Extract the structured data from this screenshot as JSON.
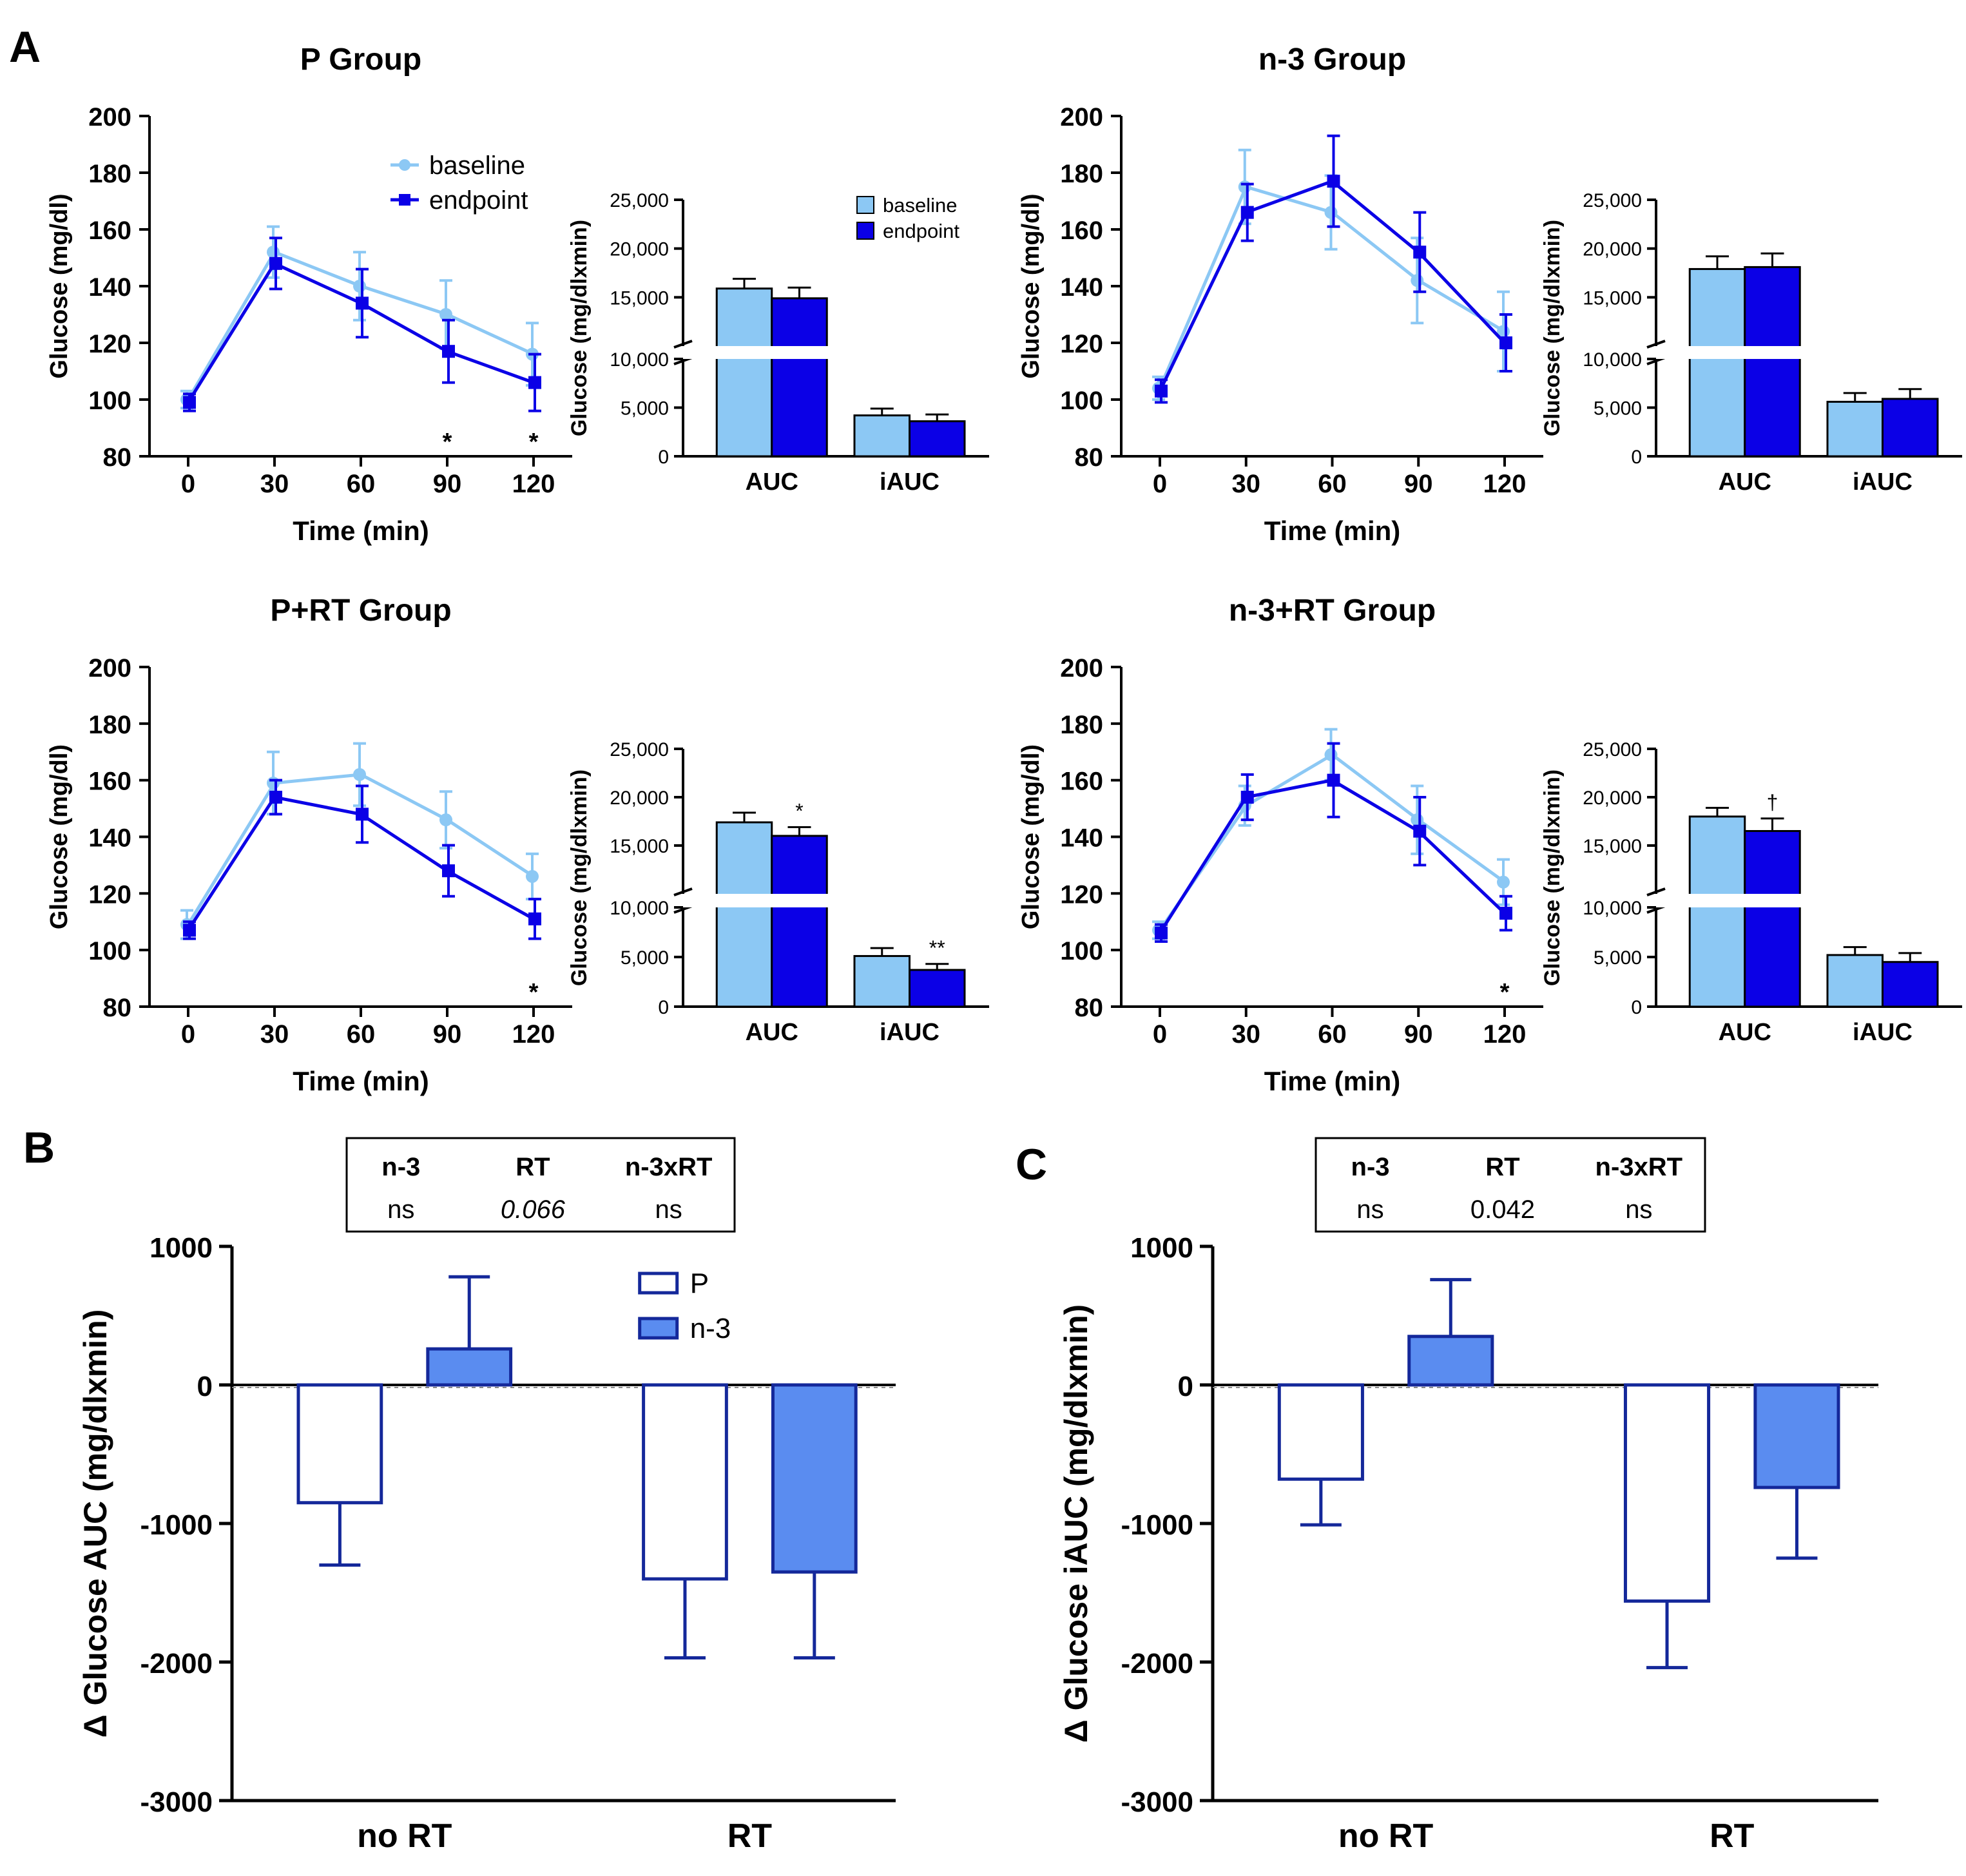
{
  "panel_letters": {
    "a": "A",
    "b": "B",
    "c": "C"
  },
  "colors": {
    "baseline": "#8cc8f4",
    "endpoint": "#0b00e6",
    "p_fill": "#ffffff",
    "n3_fill": "#5a8cf0",
    "bar_edge": "#14289a",
    "axis": "#000000"
  },
  "chart_data": [
    {
      "id": "p_line",
      "type": "line",
      "title": "P Group",
      "xlabel": "Time (min)",
      "ylabel": "Glucose (mg/dl)",
      "x": [
        0,
        30,
        60,
        90,
        120
      ],
      "xlim": [
        0,
        120
      ],
      "ylim": [
        80,
        200
      ],
      "yticks": [
        80,
        100,
        120,
        140,
        160,
        180,
        200
      ],
      "legend": {
        "position": "top-right",
        "entries": [
          "baseline",
          "endpoint"
        ]
      },
      "series": [
        {
          "name": "baseline",
          "values": [
            100,
            152,
            140,
            130,
            116
          ],
          "errors": [
            3,
            9,
            12,
            12,
            11
          ]
        },
        {
          "name": "endpoint",
          "values": [
            99,
            148,
            134,
            117,
            106
          ],
          "errors": [
            3,
            9,
            12,
            11,
            10
          ]
        }
      ],
      "annotations": [
        {
          "x": 90,
          "text": "*"
        },
        {
          "x": 120,
          "text": "*"
        }
      ]
    },
    {
      "id": "p_bar",
      "type": "bar",
      "ylabel": "Glucose (mg/dlxmin)",
      "categories": [
        "AUC",
        "iAUC"
      ],
      "ylim_lower": [
        0,
        10000
      ],
      "ylim_upper": [
        10000,
        25000
      ],
      "yticks": [
        "0",
        "5,000",
        "10,000",
        "15,000",
        "20,000",
        "25,000"
      ],
      "legend": {
        "position": "top-right",
        "entries": [
          "baseline",
          "endpoint"
        ]
      },
      "series": [
        {
          "name": "baseline",
          "values": [
            15900,
            4200
          ],
          "errors": [
            1000,
            700
          ]
        },
        {
          "name": "endpoint",
          "values": [
            14900,
            3600
          ],
          "errors": [
            1100,
            700
          ]
        }
      ],
      "annotations": []
    },
    {
      "id": "n3_line",
      "type": "line",
      "title": "n-3 Group",
      "xlabel": "Time (min)",
      "ylabel": "Glucose (mg/dl)",
      "x": [
        0,
        30,
        60,
        90,
        120
      ],
      "xlim": [
        0,
        120
      ],
      "ylim": [
        80,
        200
      ],
      "yticks": [
        80,
        100,
        120,
        140,
        160,
        180,
        200
      ],
      "series": [
        {
          "name": "baseline",
          "values": [
            104,
            175,
            166,
            142,
            124
          ],
          "errors": [
            4,
            13,
            13,
            15,
            14
          ]
        },
        {
          "name": "endpoint",
          "values": [
            103,
            166,
            177,
            152,
            120
          ],
          "errors": [
            4,
            10,
            16,
            14,
            10
          ]
        }
      ],
      "annotations": []
    },
    {
      "id": "n3_bar",
      "type": "bar",
      "ylabel": "Glucose (mg/dlxmin)",
      "categories": [
        "AUC",
        "iAUC"
      ],
      "ylim_lower": [
        0,
        10000
      ],
      "ylim_upper": [
        10000,
        25000
      ],
      "yticks": [
        "0",
        "5,000",
        "10,000",
        "15,000",
        "20,000",
        "25,000"
      ],
      "series": [
        {
          "name": "baseline",
          "values": [
            17900,
            5600
          ],
          "errors": [
            1300,
            900
          ]
        },
        {
          "name": "endpoint",
          "values": [
            18100,
            5900
          ],
          "errors": [
            1400,
            1000
          ]
        }
      ],
      "annotations": []
    },
    {
      "id": "prt_line",
      "type": "line",
      "title": "P+RT Group",
      "xlabel": "Time (min)",
      "ylabel": "Glucose (mg/dl)",
      "x": [
        0,
        30,
        60,
        90,
        120
      ],
      "xlim": [
        0,
        120
      ],
      "ylim": [
        80,
        200
      ],
      "yticks": [
        80,
        100,
        120,
        140,
        160,
        180,
        200
      ],
      "series": [
        {
          "name": "baseline",
          "values": [
            109,
            159,
            162,
            146,
            126
          ],
          "errors": [
            5,
            11,
            11,
            10,
            8
          ]
        },
        {
          "name": "endpoint",
          "values": [
            107,
            154,
            148,
            128,
            111
          ],
          "errors": [
            3,
            6,
            10,
            9,
            7
          ]
        }
      ],
      "annotations": [
        {
          "x": 120,
          "text": "*"
        }
      ]
    },
    {
      "id": "prt_bar",
      "type": "bar",
      "ylabel": "Glucose (mg/dlxmin)",
      "categories": [
        "AUC",
        "iAUC"
      ],
      "ylim_lower": [
        0,
        10000
      ],
      "ylim_upper": [
        10000,
        25000
      ],
      "yticks": [
        "0",
        "5,000",
        "10,000",
        "15,000",
        "20,000",
        "25,000"
      ],
      "series": [
        {
          "name": "baseline",
          "values": [
            17400,
            5100
          ],
          "errors": [
            1000,
            800
          ]
        },
        {
          "name": "endpoint",
          "values": [
            16000,
            3700
          ],
          "errors": [
            900,
            600
          ]
        }
      ],
      "annotations": [
        {
          "category": 0,
          "series": 1,
          "text": "*"
        },
        {
          "category": 1,
          "series": 1,
          "text": "**"
        }
      ]
    },
    {
      "id": "n3rt_line",
      "type": "line",
      "title": "n-3+RT Group",
      "xlabel": "Time (min)",
      "ylabel": "Glucose (mg/dl)",
      "x": [
        0,
        30,
        60,
        90,
        120
      ],
      "xlim": [
        0,
        120
      ],
      "ylim": [
        80,
        200
      ],
      "yticks": [
        80,
        100,
        120,
        140,
        160,
        180,
        200
      ],
      "series": [
        {
          "name": "baseline",
          "values": [
            107,
            151,
            169,
            146,
            124
          ],
          "errors": [
            3,
            7,
            9,
            12,
            8
          ]
        },
        {
          "name": "endpoint",
          "values": [
            106,
            154,
            160,
            142,
            113
          ],
          "errors": [
            3,
            8,
            13,
            12,
            6
          ]
        }
      ],
      "annotations": [
        {
          "x": 120,
          "text": "*"
        }
      ]
    },
    {
      "id": "n3rt_bar",
      "type": "bar",
      "ylabel": "Glucose (mg/dlxmin)",
      "categories": [
        "AUC",
        "iAUC"
      ],
      "ylim_lower": [
        0,
        10000
      ],
      "ylim_upper": [
        10000,
        25000
      ],
      "yticks": [
        "0",
        "5,000",
        "10,000",
        "15,000",
        "20,000",
        "25,000"
      ],
      "series": [
        {
          "name": "baseline",
          "values": [
            18000,
            5200
          ],
          "errors": [
            900,
            800
          ]
        },
        {
          "name": "endpoint",
          "values": [
            16500,
            4500
          ],
          "errors": [
            1300,
            900
          ]
        }
      ],
      "annotations": [
        {
          "category": 0,
          "series": 1,
          "text": "†"
        }
      ]
    },
    {
      "id": "delta_auc",
      "type": "bar",
      "ylabel": "Δ Glucose AUC (mg/dlxmin)",
      "categories": [
        "no RT",
        "RT"
      ],
      "ylim": [
        -3000,
        1000
      ],
      "yticks": [
        -3000,
        -2000,
        -1000,
        0,
        1000
      ],
      "legend": {
        "position": "top-right",
        "entries": [
          "P",
          "n-3"
        ]
      },
      "series": [
        {
          "name": "P",
          "values": [
            -850,
            -1400
          ],
          "errors": [
            450,
            570
          ]
        },
        {
          "name": "n-3",
          "values": [
            260,
            -1350
          ],
          "errors": [
            520,
            620
          ]
        }
      ],
      "stats_table": {
        "headers": [
          "n-3",
          "RT",
          "n-3xRT"
        ],
        "values": [
          "ns",
          "0.066",
          "ns"
        ]
      }
    },
    {
      "id": "delta_iauc",
      "type": "bar",
      "ylabel": "Δ Glucose iAUC (mg/dlxmin)",
      "categories": [
        "no RT",
        "RT"
      ],
      "ylim": [
        -3000,
        1000
      ],
      "yticks": [
        -3000,
        -2000,
        -1000,
        0,
        1000
      ],
      "series": [
        {
          "name": "P",
          "values": [
            -680,
            -1560
          ],
          "errors": [
            330,
            480
          ]
        },
        {
          "name": "n-3",
          "values": [
            350,
            -740
          ],
          "errors": [
            410,
            510
          ]
        }
      ],
      "stats_table": {
        "headers": [
          "n-3",
          "RT",
          "n-3xRT"
        ],
        "values": [
          "ns",
          "0.042",
          "ns"
        ]
      }
    }
  ]
}
